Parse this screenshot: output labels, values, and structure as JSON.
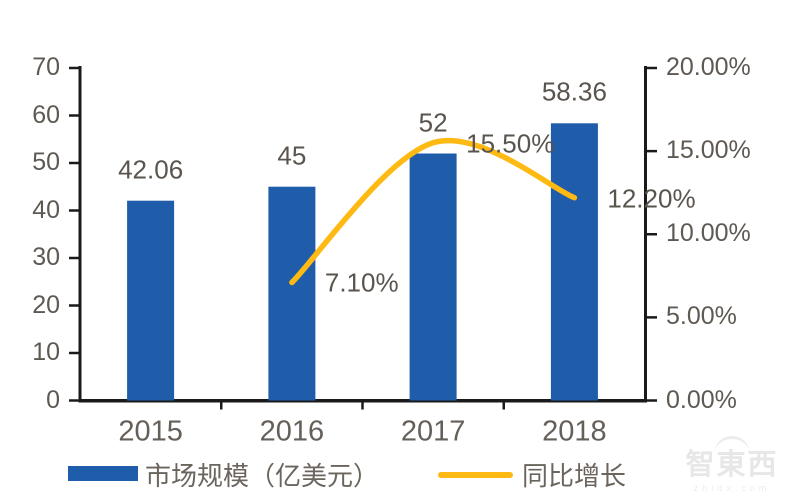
{
  "chart_data": {
    "type": "bar",
    "subtype": "bar-line-combo",
    "categories": [
      "2015",
      "2016",
      "2017",
      "2018"
    ],
    "series": [
      {
        "name": "市场规模（亿美元）",
        "type": "bar",
        "axis": "left",
        "color": "#1F5CA9",
        "values": [
          42.06,
          45,
          52,
          58.36
        ],
        "labels": [
          "42.06",
          "45",
          "52",
          "58.36"
        ]
      },
      {
        "name": "同比增长",
        "type": "line",
        "axis": "right",
        "color": "#FEB913",
        "values": [
          null,
          7.1,
          15.5,
          12.2
        ],
        "labels": [
          null,
          "7.10%",
          "15.50%",
          "12.20%"
        ]
      }
    ],
    "left_axis": {
      "min": 0,
      "max": 70,
      "step": 10,
      "tick_labels": [
        "0",
        "10",
        "20",
        "30",
        "40",
        "50",
        "60",
        "70"
      ]
    },
    "right_axis": {
      "min": 0,
      "max": 20,
      "step": 5,
      "tick_labels": [
        "0.00%",
        "5.00%",
        "10.00%",
        "15.00%",
        "20.00%"
      ]
    },
    "title": "",
    "xlabel": "",
    "ylabel": "",
    "grid": false,
    "legend_position": "bottom"
  },
  "legend": {
    "bar_label": "市场规模（亿美元）",
    "line_label": "同比增长"
  },
  "watermark": {
    "logo_text": "智東西",
    "domain_text": "zhidx.com"
  },
  "colors": {
    "bar": "#1F5CA9",
    "line": "#FEB913",
    "axis": "#1A1A1A",
    "label": "#5A544E",
    "watermark": "#E7E7E7"
  }
}
